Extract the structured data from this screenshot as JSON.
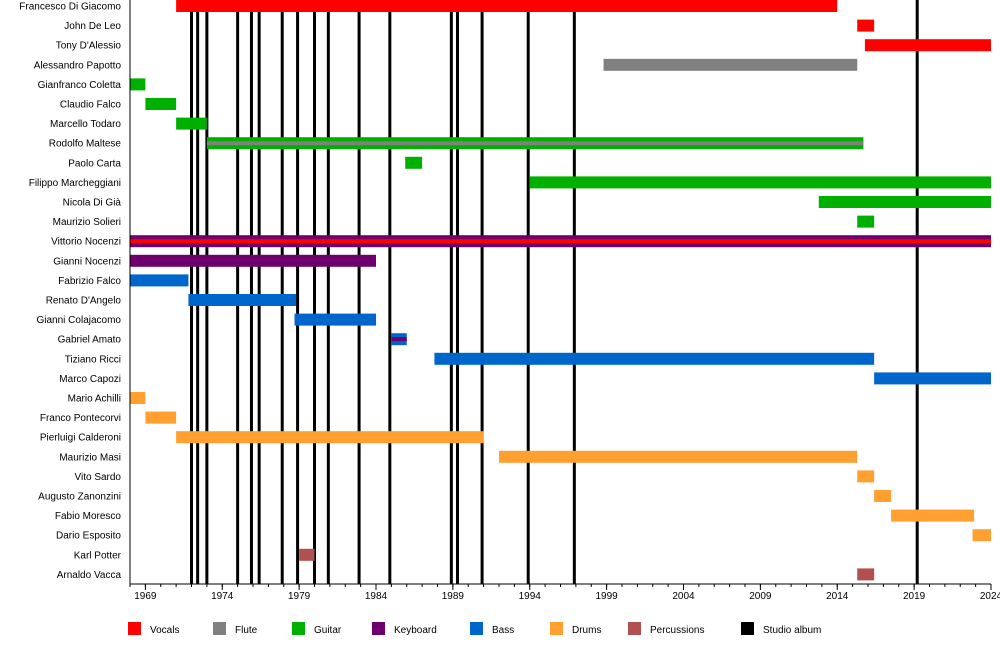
{
  "chart_data": {
    "type": "timeline",
    "title": "",
    "xlim": [
      1968,
      2024
    ],
    "x_ticks": [
      1969,
      1974,
      1979,
      1984,
      1989,
      1994,
      1999,
      2004,
      2009,
      2014,
      2019,
      2024
    ],
    "minor_tick_interval_years": 1,
    "colors": {
      "Vocals": "#ff0000",
      "Flute": "#808080",
      "Guitar": "#00b000",
      "Keyboard": "#6e006e",
      "Bass": "#0066cc",
      "Drums": "#ffa030",
      "Percussions": "#b05050",
      "Studio album": "#000000"
    },
    "legend": [
      "Vocals",
      "Flute",
      "Guitar",
      "Keyboard",
      "Bass",
      "Drums",
      "Percussions",
      "Studio album"
    ],
    "legend_position": "bottom",
    "studio_albums": [
      1972.0,
      1972.4,
      1973.0,
      1975.0,
      1975.9,
      1976.4,
      1977.9,
      1978.9,
      1980.0,
      1980.9,
      1982.9,
      1984.9,
      1988.9,
      1989.3,
      1990.9,
      1993.9,
      1996.9,
      2019.2
    ],
    "members": [
      {
        "name": "Francesco Di Giacomo",
        "roles": [
          "Vocals"
        ],
        "start": 1971.0,
        "end": 2014.0
      },
      {
        "name": "John De Leo",
        "roles": [
          "Vocals"
        ],
        "start": 2015.3,
        "end": 2016.4
      },
      {
        "name": "Tony D'Alessio",
        "roles": [
          "Vocals"
        ],
        "start": 2015.8,
        "end": 2024
      },
      {
        "name": "Alessandro Papotto",
        "roles": [
          "Flute"
        ],
        "start": 1998.8,
        "end": 2015.3
      },
      {
        "name": "Gianfranco Coletta",
        "roles": [
          "Guitar"
        ],
        "start": 1968,
        "end": 1969
      },
      {
        "name": "Claudio Falco",
        "roles": [
          "Guitar"
        ],
        "start": 1969,
        "end": 1971
      },
      {
        "name": "Marcello Todaro",
        "roles": [
          "Guitar"
        ],
        "start": 1971,
        "end": 1973
      },
      {
        "name": "Rodolfo Maltese",
        "roles": [
          "Guitar",
          "Flute"
        ],
        "start": 1973,
        "end": 2015.7
      },
      {
        "name": "Paolo Carta",
        "roles": [
          "Guitar"
        ],
        "start": 1985.9,
        "end": 1987
      },
      {
        "name": "Filippo Marcheggiani",
        "roles": [
          "Guitar"
        ],
        "start": 1994,
        "end": 2024
      },
      {
        "name": "Nicola Di Già",
        "roles": [
          "Guitar"
        ],
        "start": 2012.8,
        "end": 2024
      },
      {
        "name": "Maurizio Solieri",
        "roles": [
          "Guitar"
        ],
        "start": 2015.3,
        "end": 2016.4
      },
      {
        "name": "Vittorio Nocenzi",
        "roles": [
          "Keyboard",
          "Vocals"
        ],
        "start": 1968,
        "end": 2024
      },
      {
        "name": "Gianni Nocenzi",
        "roles": [
          "Keyboard"
        ],
        "start": 1968,
        "end": 1984
      },
      {
        "name": "Fabrizio Falco",
        "roles": [
          "Bass"
        ],
        "start": 1968,
        "end": 1971.8
      },
      {
        "name": "Renato D'Angelo",
        "roles": [
          "Bass"
        ],
        "start": 1971.8,
        "end": 1978.8
      },
      {
        "name": "Gianni Colajacomo",
        "roles": [
          "Bass"
        ],
        "start": 1978.7,
        "end": 1984
      },
      {
        "name": "Gabriel Amato",
        "roles": [
          "Bass",
          "Keyboard"
        ],
        "start": 1985,
        "end": 1986
      },
      {
        "name": "Tiziano Ricci",
        "roles": [
          "Bass"
        ],
        "start": 1987.8,
        "end": 2016.4
      },
      {
        "name": "Marco Capozi",
        "roles": [
          "Bass"
        ],
        "start": 2016.4,
        "end": 2024
      },
      {
        "name": "Mario Achilli",
        "roles": [
          "Drums"
        ],
        "start": 1968,
        "end": 1969
      },
      {
        "name": "Franco Pontecorvi",
        "roles": [
          "Drums"
        ],
        "start": 1969,
        "end": 1971
      },
      {
        "name": "Pierluigi Calderoni",
        "roles": [
          "Drums"
        ],
        "start": 1971,
        "end": 1991
      },
      {
        "name": "Maurizio Masi",
        "roles": [
          "Drums"
        ],
        "start": 1992,
        "end": 2015.3
      },
      {
        "name": "Vito Sardo",
        "roles": [
          "Drums"
        ],
        "start": 2015.3,
        "end": 2016.4
      },
      {
        "name": "Augusto Zanonzini",
        "roles": [
          "Drums"
        ],
        "start": 2016.4,
        "end": 2017.5
      },
      {
        "name": "Fabio Moresco",
        "roles": [
          "Drums"
        ],
        "start": 2017.5,
        "end": 2022.9
      },
      {
        "name": "Dario Esposito",
        "roles": [
          "Drums"
        ],
        "start": 2022.8,
        "end": 2024
      },
      {
        "name": "Karl Potter",
        "roles": [
          "Percussions"
        ],
        "start": 1979,
        "end": 1980
      },
      {
        "name": "Arnaldo Vacca",
        "roles": [
          "Percussions"
        ],
        "start": 2015.3,
        "end": 2016.4
      }
    ]
  }
}
